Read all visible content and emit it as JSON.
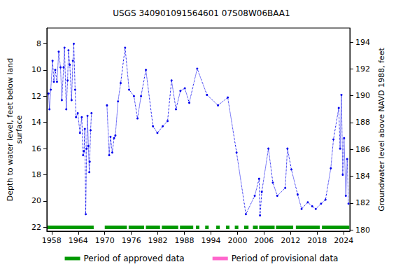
{
  "chart_data": {
    "type": "line",
    "title": "USGS 340901091564601 07S08W06BAA1",
    "ylabel": "Depth to water level, feet below land\nsurface",
    "y2label": "Groundwater level above NAVD 1988, feet",
    "xlim": [
      1956.9,
      2025.4
    ],
    "xticks": [
      1958,
      1964,
      1970,
      1976,
      1982,
      1988,
      1994,
      2000,
      2006,
      2012,
      2018,
      2024
    ],
    "ylim": [
      6.8,
      22.3
    ],
    "yticks": [
      8,
      10,
      12,
      14,
      16,
      18,
      20,
      22
    ],
    "y2lim": [
      179.9,
      195.05
    ],
    "y2ticks": [
      180,
      182,
      184,
      186,
      188,
      190,
      192,
      194
    ],
    "grid": false,
    "color": "#0000ee",
    "marker": "circle",
    "line_style": "dotted",
    "x": [
      1957.3,
      1957.5,
      1957.8,
      1958.2,
      1958.5,
      1958.8,
      1959.2,
      1959.6,
      1960.0,
      1960.3,
      1960.7,
      1960.9,
      1961.3,
      1961.6,
      1961.8,
      1962.1,
      1962.5,
      1962.8,
      1963.0,
      1963.3,
      1963.5,
      1963.9,
      1964.4,
      1964.8,
      1965.1,
      1965.3,
      1965.5,
      1965.7,
      1965.9,
      1966.1,
      1966.3,
      1966.5,
      1966.6,
      1966.8,
      1967.0,
      1968.5,
      1970.5,
      1971.0,
      1971.3,
      1971.7,
      1972.1,
      1972.4,
      1973.0,
      1973.6,
      1974.6,
      1975.5,
      1976.6,
      1977.4,
      1978.2,
      1979.3,
      1980.9,
      1981.9,
      1983.1,
      1984.2,
      1985.1,
      1986.1,
      1987.1,
      1988.1,
      1989.1,
      1990.9,
      1993.1,
      1995.6,
      1997.8,
      1999.8,
      2001.9,
      2003.9,
      2004.9,
      2005.1,
      2005.5,
      2007.0,
      2008.0,
      2009.0,
      2010.8,
      2011.3,
      2012.2,
      2013.6,
      2014.5,
      2015.9,
      2016.9,
      2017.7,
      2018.9,
      2019.9,
      2021.1,
      2021.7,
      2022.9,
      2023.2,
      2023.5,
      2023.8,
      2024.1,
      2024.5,
      2024.8,
      2025.1
    ],
    "values": [
      11.8,
      13.0,
      11.5,
      9.3,
      10.9,
      10.0,
      10.9,
      8.6,
      9.8,
      12.3,
      9.8,
      8.3,
      13.0,
      10.8,
      8.5,
      9.6,
      12.3,
      9.3,
      8.0,
      11.5,
      13.6,
      13.3,
      14.8,
      13.6,
      16.5,
      16.2,
      14.5,
      21.0,
      16.0,
      13.5,
      15.8,
      17.8,
      17.0,
      14.6,
      13.3,
      null,
      12.7,
      16.5,
      15.1,
      16.3,
      15.2,
      15.0,
      12.4,
      11.0,
      8.3,
      11.5,
      12.0,
      13.7,
      12.0,
      10.0,
      14.3,
      14.8,
      14.3,
      13.9,
      10.8,
      13.0,
      11.6,
      11.4,
      12.5,
      9.9,
      11.9,
      12.7,
      12.1,
      16.3,
      21.0,
      19.6,
      18.3,
      21.1,
      19.3,
      16.0,
      18.6,
      19.6,
      19.0,
      16.0,
      17.6,
      19.5,
      20.6,
      20.1,
      20.4,
      20.6,
      20.2,
      19.9,
      17.5,
      15.3,
      12.9,
      16.0,
      11.9,
      18.0,
      15.2,
      19.6,
      16.8,
      20.2
    ],
    "series": [
      {
        "name": "Period of approved data",
        "color": "#009900",
        "periods": [
          [
            1957.1,
            1967.5
          ],
          [
            1970.0,
            1975.0
          ],
          [
            1975.4,
            1978.9
          ],
          [
            1979.3,
            1982.5
          ],
          [
            1982.9,
            1986.6
          ],
          [
            1987.0,
            1990.0
          ],
          [
            1990.6,
            1991.4
          ],
          [
            1992.7,
            1993.5
          ],
          [
            1995.2,
            1996.0
          ],
          [
            1997.4,
            1998.2
          ],
          [
            1999.4,
            2000.2
          ],
          [
            2001.5,
            2002.5
          ],
          [
            2003.5,
            2004.6
          ],
          [
            2004.9,
            2008.4
          ],
          [
            2008.7,
            2012.6
          ],
          [
            2013.2,
            2018.6
          ],
          [
            2019.1,
            2025.3
          ]
        ]
      },
      {
        "name": "Period of provisional data",
        "color": "#ff66cc",
        "periods": []
      }
    ]
  }
}
